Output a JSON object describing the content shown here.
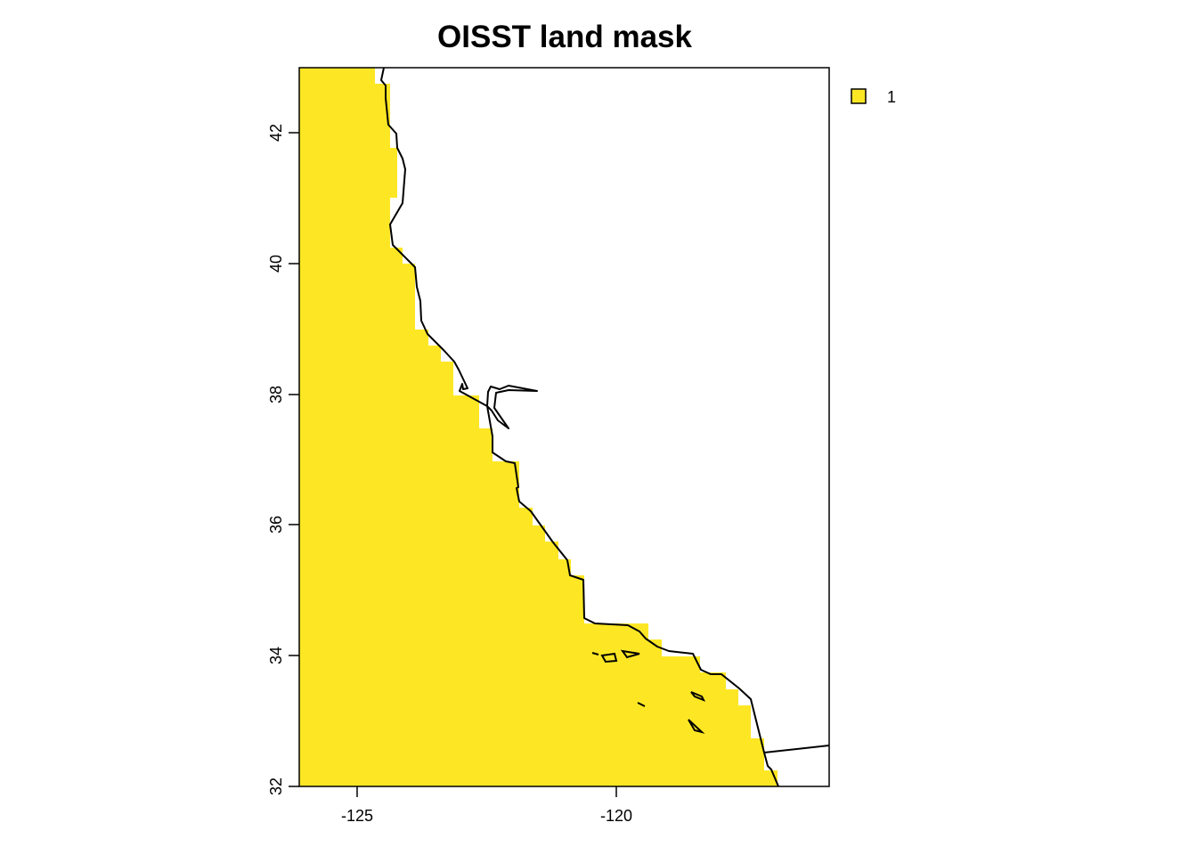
{
  "title": "OISST land mask",
  "legend": {
    "placement": "right",
    "items": [
      {
        "label": "1",
        "color": "#FDE725"
      }
    ]
  },
  "map": {
    "x_axis": {
      "ticks": [
        "-125",
        "-120"
      ]
    },
    "y_axis": {
      "ticks": [
        "32",
        "34",
        "36",
        "38",
        "40",
        "42"
      ]
    },
    "fill_color": "#FDE725",
    "coastline_color": "#000000"
  }
}
